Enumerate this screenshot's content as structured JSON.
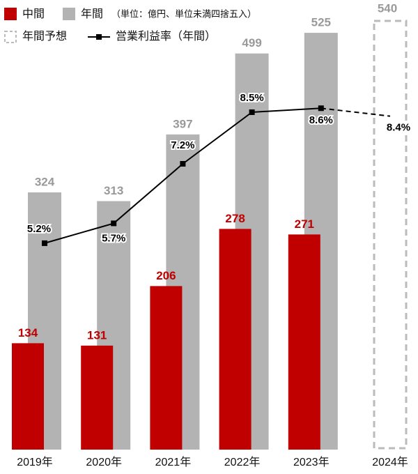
{
  "chart_data": {
    "type": "bar",
    "categories": [
      "2019年",
      "2020年",
      "2021年",
      "2022年",
      "2023年",
      "2024年"
    ],
    "unit_note": "（単位：億円、単位未満四捨五入）",
    "series": [
      {
        "name": "中間",
        "color": "#c00000",
        "values": [
          134,
          131,
          206,
          278,
          271,
          null
        ]
      },
      {
        "name": "年間",
        "color": "#b3b3b3",
        "values": [
          324,
          313,
          397,
          499,
          525,
          null
        ]
      },
      {
        "name": "年間予想",
        "color": "#bbbbbb",
        "values": [
          null,
          null,
          null,
          null,
          null,
          540
        ]
      },
      {
        "name": "営業利益率（年間）",
        "color": "#000000",
        "axis": "y2",
        "values": [
          5.2,
          5.7,
          7.2,
          8.5,
          8.6,
          8.4
        ],
        "value_labels": [
          "5.2%",
          "5.7%",
          "7.2%",
          "8.5%",
          "8.6%",
          "8.4%"
        ]
      }
    ],
    "ylim": [
      0,
      540
    ],
    "y2lim": [
      0,
      10.8
    ]
  }
}
